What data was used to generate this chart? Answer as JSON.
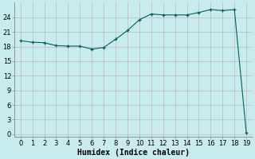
{
  "x": [
    0,
    1,
    2,
    3,
    4,
    5,
    6,
    7,
    8,
    9,
    10,
    11,
    12,
    13,
    14,
    15,
    16,
    17,
    18,
    19
  ],
  "y": [
    19.2,
    18.9,
    18.8,
    18.2,
    18.1,
    18.1,
    17.5,
    17.8,
    19.5,
    21.3,
    23.5,
    24.7,
    24.5,
    24.5,
    24.5,
    25.0,
    25.6,
    25.4,
    25.6,
    0.3
  ],
  "line_color": "#006060",
  "marker": "+",
  "bg_color": "#c8ecec",
  "grid_color_major": "#c8b4b4",
  "xlabel": "Humidex (Indice chaleur)",
  "xlim": [
    -0.5,
    19.5
  ],
  "ylim": [
    -0.5,
    27
  ],
  "yticks": [
    0,
    3,
    6,
    9,
    12,
    15,
    18,
    21,
    24
  ],
  "xticks": [
    0,
    1,
    2,
    3,
    4,
    5,
    6,
    7,
    8,
    9,
    10,
    11,
    12,
    13,
    14,
    15,
    16,
    17,
    18,
    19
  ],
  "xlabel_fontsize": 7,
  "tick_fontsize": 6
}
